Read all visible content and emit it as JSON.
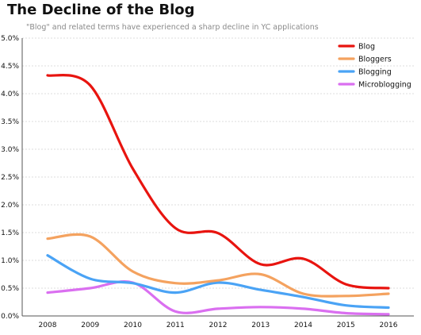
{
  "chart_data": {
    "type": "line",
    "title": "The Decline of the Blog",
    "subtitle": "\"Blog\" and related terms have experienced  a sharp decline in YC applications",
    "xlabel": "",
    "ylabel": "",
    "x": [
      2008,
      2009,
      2010,
      2011,
      2012,
      2013,
      2014,
      2015,
      2016
    ],
    "x_tick_labels": [
      "2008",
      "2009",
      "2010",
      "2011",
      "2012",
      "2013",
      "2014",
      "2015",
      "2016"
    ],
    "ylim": [
      0,
      5.0
    ],
    "y_ticks": [
      0,
      0.5,
      1.0,
      1.5,
      2.0,
      2.5,
      3.0,
      3.5,
      4.0,
      4.5,
      5.0
    ],
    "y_tick_labels": [
      "0.0%",
      "0.5%",
      "1.0%",
      "1.5%",
      "2.0%",
      "2.5%",
      "3.0%",
      "3.5%",
      "4.0%",
      "4.5%",
      "5.0%"
    ],
    "grid": "horizontal-dashed",
    "legend_position": "top-right",
    "series": [
      {
        "name": "Blog",
        "color": "#e8140f",
        "values": [
          4.33,
          4.15,
          2.65,
          1.58,
          1.49,
          0.93,
          1.03,
          0.57,
          0.5
        ]
      },
      {
        "name": "Bloggers",
        "color": "#f4a25f",
        "values": [
          1.39,
          1.43,
          0.8,
          0.59,
          0.64,
          0.75,
          0.4,
          0.36,
          0.4
        ]
      },
      {
        "name": "Blogging",
        "color": "#4aa3f5",
        "values": [
          1.09,
          0.67,
          0.59,
          0.42,
          0.6,
          0.47,
          0.34,
          0.19,
          0.15
        ]
      },
      {
        "name": "Microblogging",
        "color": "#da6ff0",
        "values": [
          0.42,
          0.5,
          0.6,
          0.08,
          0.13,
          0.16,
          0.13,
          0.05,
          0.03
        ]
      }
    ]
  }
}
